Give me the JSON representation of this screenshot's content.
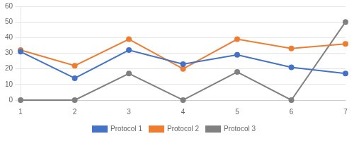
{
  "chart_data": {
    "type": "line",
    "x": [
      1,
      2,
      3,
      4,
      5,
      6,
      7
    ],
    "series": [
      {
        "name": "Protocol 1",
        "color": "#4472C4",
        "values": [
          31,
          14,
          32,
          23,
          29,
          21,
          17
        ]
      },
      {
        "name": "Protocol 2",
        "color": "#ED7D31",
        "values": [
          32,
          22,
          39,
          20,
          39,
          33,
          36
        ]
      },
      {
        "name": "Protocol 3",
        "color": "#808080",
        "values": [
          0,
          0,
          17,
          0,
          18,
          0,
          50
        ]
      }
    ],
    "marker": "circle",
    "xlim": [
      1,
      7
    ],
    "xticks": [
      1,
      2,
      3,
      4,
      5,
      6,
      7
    ],
    "ylim": [
      0,
      60
    ],
    "yticks": [
      0,
      10,
      20,
      30,
      40,
      50,
      60
    ],
    "grid": "y",
    "legend": "bottom"
  }
}
